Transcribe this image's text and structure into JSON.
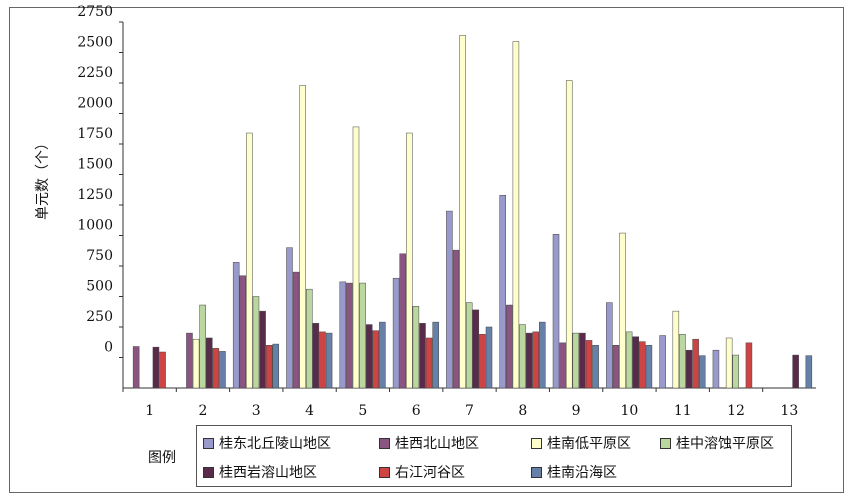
{
  "chart_data": {
    "type": "bar",
    "title": "",
    "xlabel": "",
    "ylabel": "单元数（个）",
    "ylim": [
      -250,
      2750
    ],
    "yticks": [
      2750,
      2500,
      2250,
      2000,
      1750,
      1500,
      1250,
      1000,
      750,
      500,
      250,
      0
    ],
    "grid": false,
    "legend_title": "图例",
    "legend_position": "bottom",
    "categories": [
      "1",
      "2",
      "3",
      "4",
      "5",
      "6",
      "7",
      "8",
      "9",
      "10",
      "11",
      "12",
      "13"
    ],
    "series": [
      {
        "name": "桂东北丘陵山地区",
        "color": "#9999cc",
        "values": [
          0,
          0,
          780,
          900,
          620,
          650,
          1200,
          1330,
          1010,
          450,
          180,
          60,
          0
        ]
      },
      {
        "name": "桂西北山地区",
        "color": "#8a5580",
        "values": [
          90,
          200,
          670,
          700,
          610,
          850,
          880,
          430,
          120,
          100,
          0,
          0,
          0
        ]
      },
      {
        "name": "桂南低平原区",
        "color": "#ffffcc",
        "values": [
          0,
          150,
          1840,
          2230,
          1890,
          1840,
          2640,
          2590,
          2270,
          1020,
          380,
          160,
          0
        ]
      },
      {
        "name": "桂中溶蚀平原区",
        "color": "#bbd7a0",
        "values": [
          0,
          430,
          500,
          560,
          610,
          420,
          450,
          270,
          200,
          210,
          190,
          20,
          0
        ]
      },
      {
        "name": "桂西岩溶山地区",
        "color": "#5a2a4a",
        "values": [
          85,
          160,
          380,
          280,
          270,
          280,
          390,
          200,
          200,
          170,
          60,
          0,
          20
        ]
      },
      {
        "name": "右江河谷区",
        "color": "#cc4444",
        "values": [
          45,
          75,
          100,
          210,
          220,
          160,
          190,
          210,
          140,
          130,
          150,
          120,
          0
        ]
      },
      {
        "name": "桂南沿海区",
        "color": "#6680a8",
        "values": [
          0,
          50,
          110,
          200,
          290,
          290,
          250,
          290,
          100,
          100,
          15,
          0,
          15
        ]
      }
    ]
  }
}
